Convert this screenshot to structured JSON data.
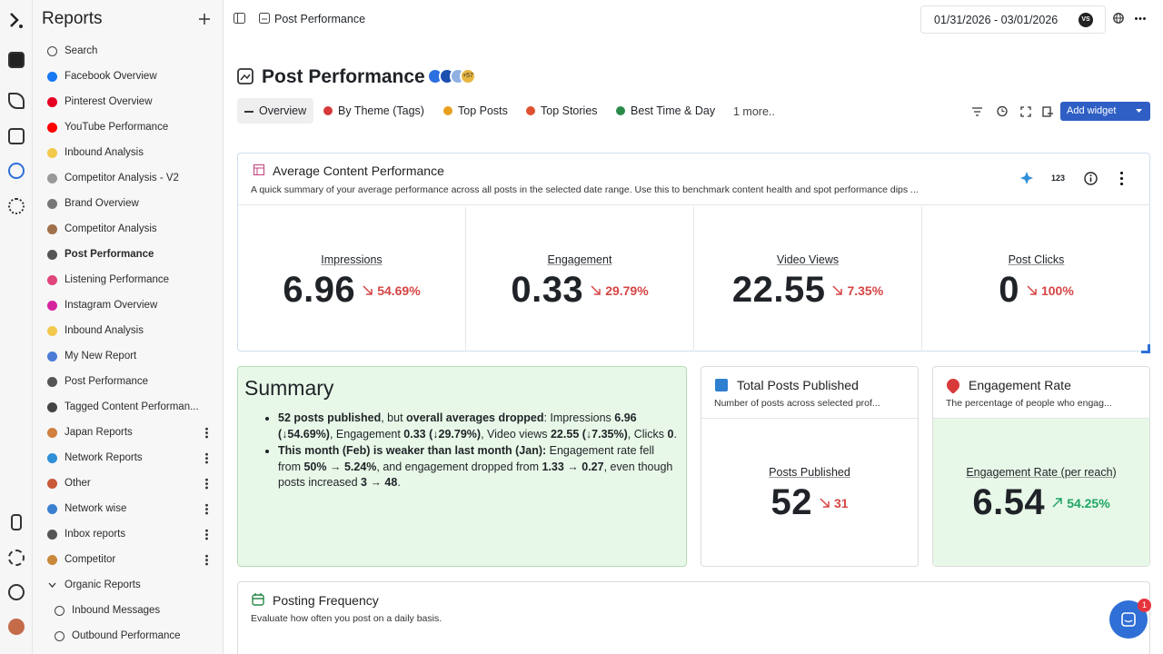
{
  "sidebar": {
    "title": "Reports",
    "items": [
      {
        "label": "Search"
      },
      {
        "label": "Facebook Overview"
      },
      {
        "label": "Pinterest Overview"
      },
      {
        "label": "YouTube Performance"
      },
      {
        "label": "Inbound Analysis"
      },
      {
        "label": "Competitor Analysis - V2"
      },
      {
        "label": "Brand Overview"
      },
      {
        "label": "Competitor Analysis"
      },
      {
        "label": "Post Performance",
        "active": true
      },
      {
        "label": "Listening Performance"
      },
      {
        "label": "Instagram Overview"
      },
      {
        "label": "Inbound Analysis"
      },
      {
        "label": "My New Report"
      },
      {
        "label": "Post Performance"
      },
      {
        "label": "Tagged Content Performan..."
      },
      {
        "label": "Japan Reports",
        "menu": true
      },
      {
        "label": "Network Reports",
        "menu": true
      },
      {
        "label": "Other",
        "menu": true
      },
      {
        "label": "Network wise",
        "menu": true
      },
      {
        "label": "Inbox reports",
        "menu": true
      },
      {
        "label": "Competitor",
        "menu": true
      },
      {
        "label": "Organic Reports",
        "expanded": true
      },
      {
        "label": "Inbound Messages",
        "indent": true
      },
      {
        "label": "Outbound Performance",
        "indent": true
      }
    ]
  },
  "breadcrumb": "Post Performance",
  "date_range": "01/31/2026 - 03/01/2026",
  "avatar": "VS",
  "page_title": "Post Performance",
  "profiles_more": "+57",
  "tabs": [
    "Overview",
    "By Theme (Tags)",
    "Top Posts",
    "Top Stories",
    "Best Time & Day"
  ],
  "tabs_more": "1 more..",
  "add_widget": "Add widget",
  "average_widget": {
    "title": "Average Content Performance",
    "description": "A quick summary of your average performance across all posts in the selected date range. Use this to benchmark content health and spot performance dips ...",
    "toggle": "123",
    "metrics": [
      {
        "label": "Impressions",
        "value": "6.96",
        "change": "54.69%",
        "trend": "down"
      },
      {
        "label": "Engagement",
        "value": "0.33",
        "change": "29.79%",
        "trend": "down"
      },
      {
        "label": "Video Views",
        "value": "22.55",
        "change": "7.35%",
        "trend": "down"
      },
      {
        "label": "Post Clicks",
        "value": "0",
        "change": "100%",
        "trend": "down"
      }
    ]
  },
  "summary": {
    "title": "Summary",
    "bullets": [
      [
        {
          "text": "52 posts published",
          "bold": true
        },
        {
          "text": ", but "
        },
        {
          "text": "overall averages dropped",
          "bold": true
        },
        {
          "text": ": Impressions "
        },
        {
          "text": "6.96 (↓54.69%)",
          "bold": true
        },
        {
          "text": ", Engagement "
        },
        {
          "text": "0.33 (↓29.79%)",
          "bold": true
        },
        {
          "text": ", Video views "
        },
        {
          "text": "22.55 (↓7.35%)",
          "bold": true
        },
        {
          "text": ", Clicks "
        },
        {
          "text": "0",
          "bold": true
        },
        {
          "text": "."
        }
      ],
      [
        {
          "text": "This month (Feb) is weaker than last month (Jan):",
          "bold": true
        },
        {
          "text": " Engagement rate fell from "
        },
        {
          "text": "50% → 5.24%",
          "bold": true
        },
        {
          "text": ", and engagement dropped from "
        },
        {
          "text": "1.33 → 0.27",
          "bold": true
        },
        {
          "text": ", even though posts increased "
        },
        {
          "text": "3 → 48",
          "bold": true
        },
        {
          "text": "."
        }
      ]
    ]
  },
  "total_posts": {
    "title": "Total Posts Published",
    "description": "Number of posts across selected prof...",
    "label": "Posts Published",
    "value": "52",
    "change": "31",
    "trend": "down"
  },
  "engagement_rate": {
    "title": "Engagement Rate",
    "description": "The percentage of people who engag...",
    "label": "Engagement Rate (per reach)",
    "value": "6.54",
    "change": "54.25%",
    "trend": "up"
  },
  "posting_frequency": {
    "title": "Posting Frequency",
    "description": "Evaluate how often you post on a daily basis."
  },
  "chat_badge": "1"
}
